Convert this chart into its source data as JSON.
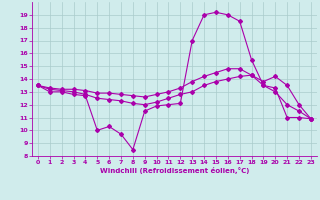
{
  "x": [
    0,
    1,
    2,
    3,
    4,
    5,
    6,
    7,
    8,
    9,
    10,
    11,
    12,
    13,
    14,
    15,
    16,
    17,
    18,
    19,
    20,
    21,
    22,
    23
  ],
  "line1": [
    13.5,
    13.0,
    13.0,
    12.8,
    12.7,
    10.0,
    10.3,
    9.7,
    8.5,
    11.5,
    11.9,
    12.0,
    12.1,
    17.0,
    19.0,
    19.2,
    19.0,
    18.5,
    15.5,
    13.5,
    13.3,
    11.0,
    11.0,
    10.9
  ],
  "line2": [
    13.5,
    13.2,
    13.1,
    13.0,
    12.8,
    12.5,
    12.4,
    12.3,
    12.1,
    12.0,
    12.2,
    12.5,
    12.8,
    13.0,
    13.5,
    13.8,
    14.0,
    14.2,
    14.3,
    13.8,
    14.2,
    13.5,
    12.0,
    10.9
  ],
  "line3": [
    13.5,
    13.3,
    13.2,
    13.2,
    13.1,
    12.9,
    12.9,
    12.8,
    12.7,
    12.6,
    12.8,
    13.0,
    13.3,
    13.8,
    14.2,
    14.5,
    14.8,
    14.8,
    14.3,
    13.5,
    13.0,
    12.0,
    11.5,
    10.9
  ],
  "color": "#aa00aa",
  "bg_color": "#d0ecec",
  "grid_color": "#aacccc",
  "xlabel": "Windchill (Refroidissement éolien,°C)",
  "ylim": [
    8,
    20
  ],
  "xlim": [
    -0.5,
    23.5
  ],
  "yticks": [
    8,
    9,
    10,
    11,
    12,
    13,
    14,
    15,
    16,
    17,
    18,
    19
  ],
  "xticks": [
    0,
    1,
    2,
    3,
    4,
    5,
    6,
    7,
    8,
    9,
    10,
    11,
    12,
    13,
    14,
    15,
    16,
    17,
    18,
    19,
    20,
    21,
    22,
    23
  ],
  "figsize": [
    3.2,
    2.0
  ],
  "dpi": 100
}
